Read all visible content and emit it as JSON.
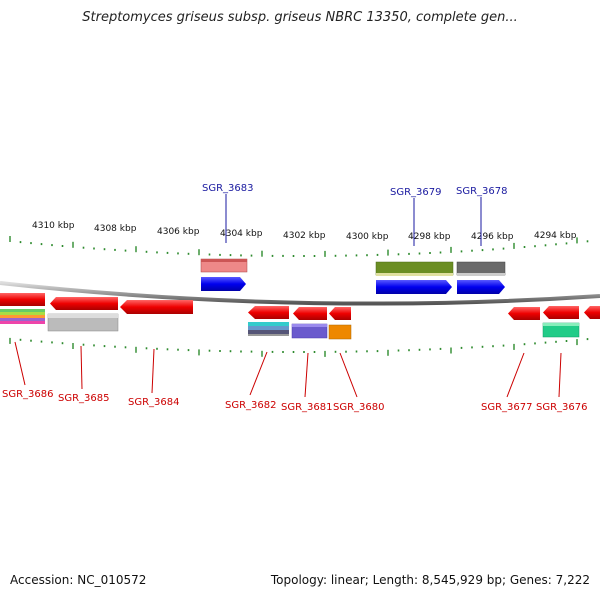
{
  "title": "Streptomyces griseus subsp. griseus NBRC 13350, complete gen...",
  "footer": {
    "accession": "Accession: NC_010572",
    "summary": "Topology: linear; Length: 8,545,929 bp; Genes: 7,222"
  },
  "ruler": {
    "labels": [
      "4310 kbp",
      "4308 kbp",
      "4306 kbp",
      "4304 kbp",
      "4302 kbp",
      "4300 kbp",
      "4298 kbp",
      "4296 kbp",
      "4294 kbp"
    ]
  },
  "genes_top": [
    {
      "id": "SGR_3683",
      "color": "#1a1aa0"
    },
    {
      "id": "SGR_3679",
      "color": "#1a1aa0"
    },
    {
      "id": "SGR_3678",
      "color": "#1a1aa0"
    }
  ],
  "genes_bottom": [
    {
      "id": "SGR_3686",
      "color": "#cc0000"
    },
    {
      "id": "SGR_3685",
      "color": "#cc0000"
    },
    {
      "id": "SGR_3684",
      "color": "#cc0000"
    },
    {
      "id": "SGR_3682",
      "color": "#cc0000"
    },
    {
      "id": "SGR_3681",
      "color": "#cc0000"
    },
    {
      "id": "SGR_3680",
      "color": "#cc0000"
    },
    {
      "id": "SGR_3677",
      "color": "#cc0000"
    },
    {
      "id": "SGR_3676",
      "color": "#cc0000"
    }
  ],
  "colors": {
    "tick": "#2e8b2e",
    "backbone": "#888888",
    "forward_gene": "#0000ee",
    "reverse_gene": "#ee0000"
  }
}
